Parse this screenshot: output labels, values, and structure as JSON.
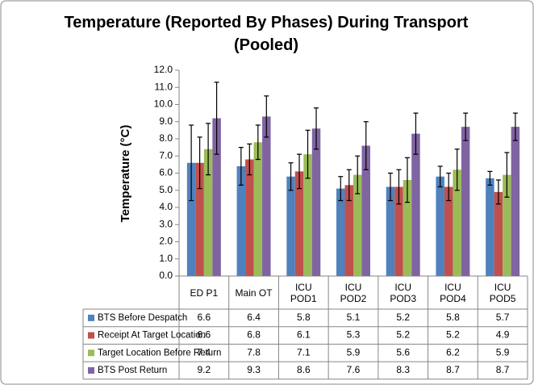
{
  "chart_data": {
    "type": "bar",
    "title": "Temperature (Reported By Phases) During Transport (Pooled)",
    "y_label": "Temperature (°C)",
    "categories": [
      "ED P1",
      "Main OT",
      "ICU POD1",
      "ICU POD2",
      "ICU POD3",
      "ICU POD4",
      "ICU POD5"
    ],
    "series": [
      {
        "name": "BTS Before Despatch",
        "color": "#4f81bd",
        "values": [
          6.6,
          6.4,
          5.8,
          5.1,
          5.2,
          5.8,
          5.7
        ],
        "errors": [
          2.2,
          1.1,
          0.8,
          0.7,
          0.8,
          0.6,
          0.4
        ]
      },
      {
        "name": "Receipt At Target Location",
        "color": "#c0504d",
        "values": [
          6.6,
          6.8,
          6.1,
          5.3,
          5.2,
          5.2,
          4.9
        ],
        "errors": [
          1.5,
          0.9,
          1.0,
          0.9,
          1.0,
          0.8,
          0.7
        ]
      },
      {
        "name": "Target Location Before Return",
        "color": "#9bbb59",
        "values": [
          7.4,
          7.8,
          7.1,
          5.9,
          5.6,
          6.2,
          5.9
        ],
        "errors": [
          1.5,
          1.0,
          1.4,
          1.1,
          1.3,
          1.2,
          1.3
        ]
      },
      {
        "name": "BTS Post Return",
        "color": "#8064a2",
        "values": [
          9.2,
          9.3,
          8.6,
          7.6,
          8.3,
          8.7,
          8.7
        ],
        "errors": [
          2.1,
          1.2,
          1.2,
          1.4,
          1.2,
          0.8,
          0.8
        ]
      }
    ],
    "ylim": [
      0,
      12
    ],
    "yticks": [
      {
        "value": 0,
        "label": "0.0"
      },
      {
        "value": 1,
        "label": "1.0"
      },
      {
        "value": 2,
        "label": "2.0"
      },
      {
        "value": 3,
        "label": "3.0"
      },
      {
        "value": 4,
        "label": "4.0"
      },
      {
        "value": 5,
        "label": "5.0"
      },
      {
        "value": 6,
        "label": "6.0"
      },
      {
        "value": 7,
        "label": "7.0"
      },
      {
        "value": 8,
        "label": "8.0"
      },
      {
        "value": 9,
        "label": "9.0"
      },
      {
        "value": 10,
        "label": "10.0"
      },
      {
        "value": 11,
        "label": "11.0"
      },
      {
        "value": 12,
        "label": "12.0"
      }
    ],
    "grid": false
  }
}
